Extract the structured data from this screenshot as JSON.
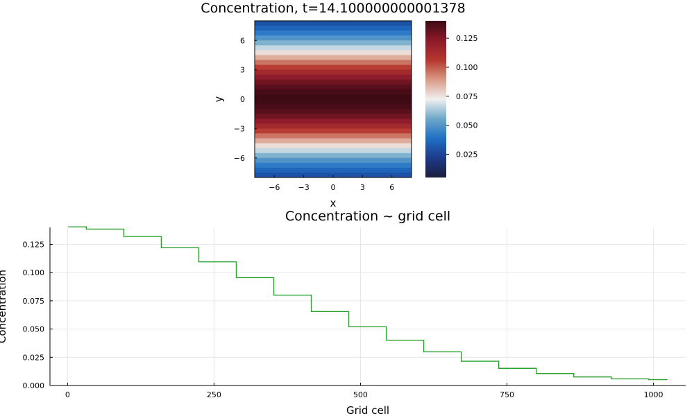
{
  "chart_data": [
    {
      "type": "heatmap",
      "title": "Concentration, t=14.100000000001378",
      "xlabel": "x",
      "ylabel": "y",
      "xlim": [
        -8,
        8
      ],
      "ylim": [
        -8,
        8
      ],
      "x_ticks": [
        -6,
        -3,
        0,
        3,
        6
      ],
      "y_ticks": [
        -6,
        -3,
        0,
        3,
        6
      ],
      "x_tick_labels": [
        "−6",
        "−3",
        "0",
        "3",
        "6"
      ],
      "y_tick_labels": [
        "−6",
        "−3",
        "0",
        "3",
        "6"
      ],
      "colorbar": {
        "limits": [
          0.005,
          0.14
        ],
        "ticks": [
          0.025,
          0.05,
          0.075,
          0.1,
          0.125
        ],
        "tick_labels": [
          "0.025",
          "0.050",
          "0.075",
          "0.100",
          "0.125"
        ],
        "colormap": [
          "#1a1f3c",
          "#1d3a8a",
          "#1f6fc6",
          "#6ea8c9",
          "#f0f0f0",
          "#d99a85",
          "#b5362e",
          "#8c1a2a",
          "#3d0a14"
        ]
      },
      "rows": 32,
      "profile": "gaussian in y, centered at y=0, constant along x",
      "grid": false
    },
    {
      "type": "line",
      "title": "Concentration ~ grid cell",
      "xlabel": "Grid cell",
      "ylabel": "Concentration",
      "xlim": [
        -30,
        1055
      ],
      "ylim": [
        0,
        0.14
      ],
      "x_ticks": [
        0,
        250,
        500,
        750,
        1000
      ],
      "x_tick_labels": [
        "0",
        "250",
        "500",
        "750",
        "1000"
      ],
      "y_ticks": [
        0,
        0.025,
        0.05,
        0.075,
        0.1,
        0.125
      ],
      "y_tick_labels": [
        "0.000",
        "0.025",
        "0.050",
        "0.075",
        "0.100",
        "0.125"
      ],
      "color": "#2ca02c",
      "grid": true,
      "steps": [
        {
          "x0": 1,
          "x1": 32,
          "y": 0.1405
        },
        {
          "x0": 33,
          "x1": 96,
          "y": 0.1385
        },
        {
          "x0": 97,
          "x1": 160,
          "y": 0.132
        },
        {
          "x0": 161,
          "x1": 224,
          "y": 0.122
        },
        {
          "x0": 225,
          "x1": 288,
          "y": 0.1095
        },
        {
          "x0": 289,
          "x1": 352,
          "y": 0.0955
        },
        {
          "x0": 353,
          "x1": 416,
          "y": 0.08
        },
        {
          "x0": 417,
          "x1": 480,
          "y": 0.0655
        },
        {
          "x0": 481,
          "x1": 544,
          "y": 0.052
        },
        {
          "x0": 545,
          "x1": 608,
          "y": 0.04
        },
        {
          "x0": 609,
          "x1": 672,
          "y": 0.0298
        },
        {
          "x0": 673,
          "x1": 736,
          "y": 0.0215
        },
        {
          "x0": 737,
          "x1": 800,
          "y": 0.0152
        },
        {
          "x0": 801,
          "x1": 864,
          "y": 0.0106
        },
        {
          "x0": 865,
          "x1": 928,
          "y": 0.0076
        },
        {
          "x0": 929,
          "x1": 992,
          "y": 0.0059
        },
        {
          "x0": 993,
          "x1": 1024,
          "y": 0.0052
        }
      ]
    }
  ]
}
